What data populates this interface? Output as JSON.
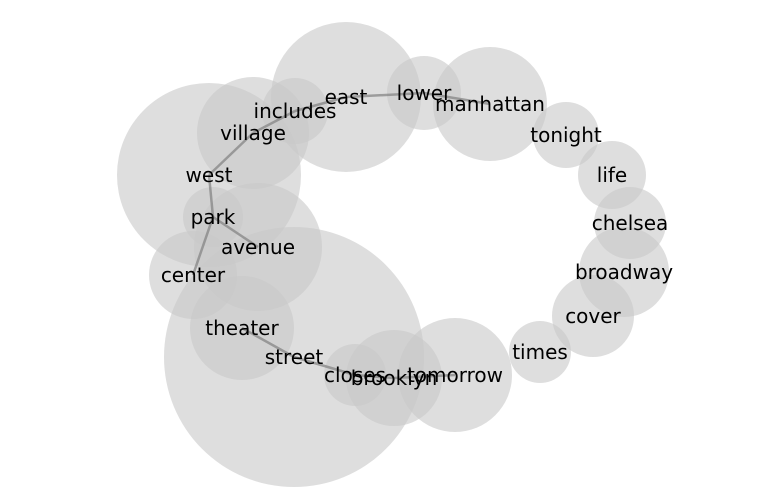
{
  "words": [
    {
      "id": "east",
      "label": "east",
      "size": 75
    },
    {
      "id": "lower",
      "label": "lower",
      "size": 37
    },
    {
      "id": "manhattan",
      "label": "manhattan",
      "size": 57
    },
    {
      "id": "tonight",
      "label": "tonight",
      "size": 33
    },
    {
      "id": "life",
      "label": "life",
      "size": 34
    },
    {
      "id": "chelsea",
      "label": "chelsea",
      "size": 36
    },
    {
      "id": "broadway",
      "label": "broadway",
      "size": 45
    },
    {
      "id": "cover",
      "label": "cover",
      "size": 41
    },
    {
      "id": "times",
      "label": "times",
      "size": 31
    },
    {
      "id": "tomorrow",
      "label": "tomorrow",
      "size": 57
    },
    {
      "id": "brooklyn",
      "label": "brooklyn",
      "size": 48
    },
    {
      "id": "closes",
      "label": "closes",
      "size": 31
    },
    {
      "id": "street",
      "label": "street",
      "size": 130
    },
    {
      "id": "theater",
      "label": "theater",
      "size": 52
    },
    {
      "id": "center",
      "label": "center",
      "size": 44
    },
    {
      "id": "avenue",
      "label": "avenue",
      "size": 64
    },
    {
      "id": "park",
      "label": "park",
      "size": 30
    },
    {
      "id": "west",
      "label": "west",
      "size": 92
    },
    {
      "id": "village",
      "label": "village",
      "size": 56
    },
    {
      "id": "includes",
      "label": "includes",
      "size": 33
    }
  ],
  "links": [
    [
      "east",
      "lower"
    ],
    [
      "lower",
      "manhattan"
    ],
    [
      "east",
      "includes"
    ],
    [
      "includes",
      "village"
    ],
    [
      "village",
      "west"
    ],
    [
      "west",
      "park"
    ],
    [
      "park",
      "avenue"
    ],
    [
      "park",
      "center"
    ],
    [
      "theater",
      "street"
    ],
    [
      "street",
      "closes"
    ],
    [
      "closes",
      "brooklyn"
    ],
    [
      "brooklyn",
      "tomorrow"
    ]
  ]
}
